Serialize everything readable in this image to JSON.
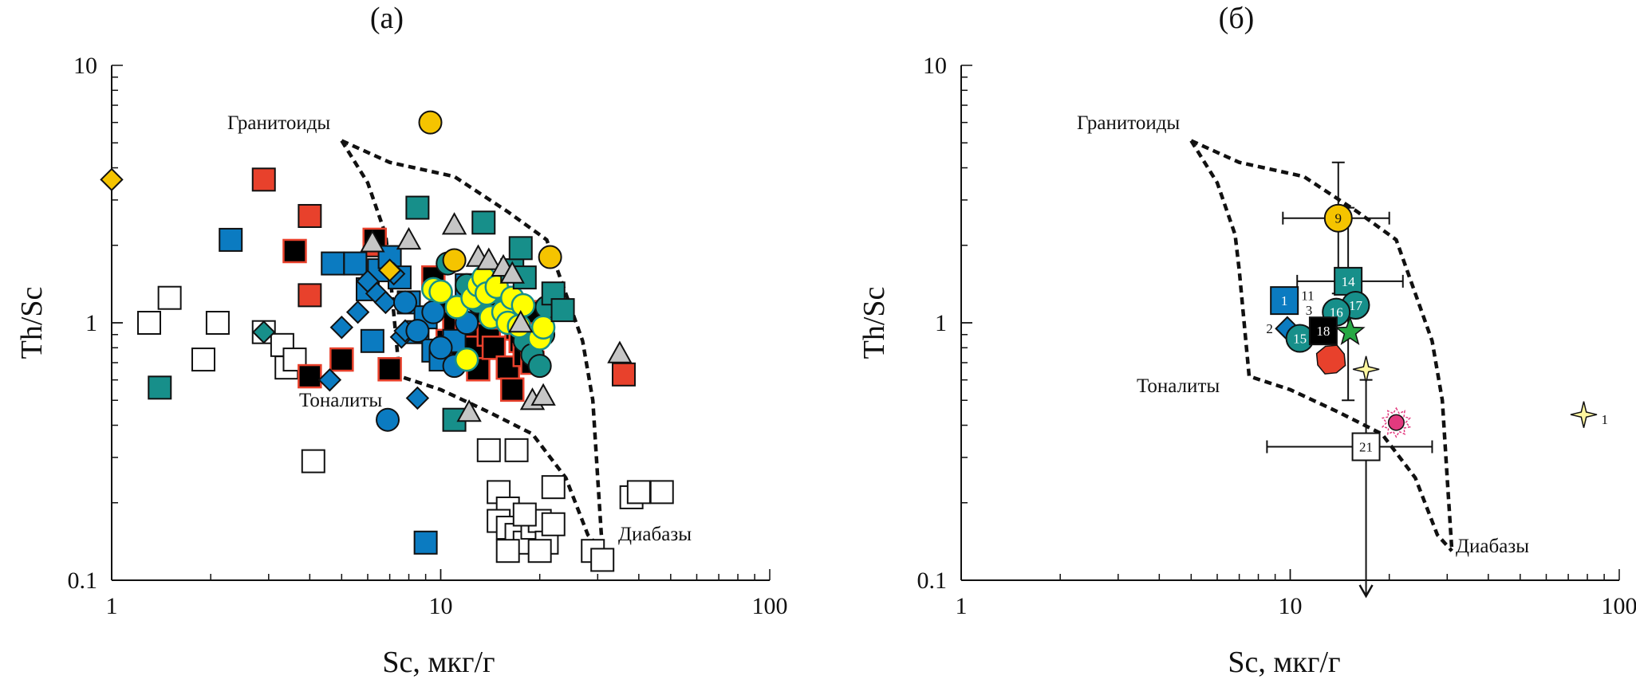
{
  "chart_data": [
    {
      "type": "scatter",
      "title": "(а)",
      "xlabel": "Sc, мкг/г",
      "ylabel": "Th/Sc",
      "x_scale": "log",
      "y_scale": "log",
      "xlim": [
        1,
        100
      ],
      "ylim": [
        0.1,
        10
      ],
      "x_ticks": [
        "1",
        "10",
        "100"
      ],
      "y_ticks": [
        "0.1",
        "1",
        "10"
      ],
      "grid": false,
      "fields": [
        {
          "label": "Гранитоиды",
          "points": [
            [
              5,
              5.1
            ],
            [
              7,
              4.2
            ],
            [
              11,
              3.7
            ],
            [
              16,
              2.7
            ],
            [
              21,
              2.1
            ],
            [
              24,
              1.3
            ],
            [
              27,
              0.85
            ],
            [
              29,
              0.5
            ],
            [
              30,
              0.25
            ],
            [
              31,
              0.13
            ]
          ]
        },
        {
          "label": "Тоналиты",
          "points": [
            [
              5,
              5.1
            ],
            [
              6,
              3.5
            ],
            [
              6.8,
              2.2
            ],
            [
              7,
              1.6
            ],
            [
              7.5,
              0.62
            ],
            [
              10,
              0.55
            ],
            [
              14,
              0.45
            ],
            [
              19,
              0.37
            ],
            [
              24,
              0.25
            ],
            [
              28,
              0.15
            ],
            [
              31,
              0.13
            ]
          ]
        },
        {
          "label": "Диабазы",
          "points": []
        }
      ],
      "label_positions": {
        "Гранитоиды": [
          1.0,
          1.0
        ],
        "Тоналиты": [
          0.5,
          0.5
        ],
        "Диабазы": [
          0.5,
          0.5
        ]
      },
      "series": [
        {
          "marker": "square",
          "fill": "#ffffff",
          "stroke": "#111111",
          "points": [
            [
              1.3,
              1.0
            ],
            [
              1.5,
              1.25
            ],
            [
              1.9,
              0.72
            ],
            [
              2.1,
              1.0
            ],
            [
              2.9,
              0.92
            ],
            [
              3.3,
              0.82
            ],
            [
              3.4,
              0.67
            ],
            [
              3.6,
              0.72
            ],
            [
              4.1,
              0.29
            ],
            [
              14,
              0.32
            ],
            [
              15,
              0.22
            ],
            [
              16,
              0.19
            ],
            [
              17,
              0.32
            ],
            [
              15,
              0.17
            ],
            [
              16,
              0.16
            ],
            [
              17,
              0.15
            ],
            [
              18,
              0.14
            ],
            [
              19,
              0.16
            ],
            [
              20,
              0.17
            ],
            [
              21,
              0.14
            ],
            [
              20,
              0.13
            ],
            [
              22,
              0.165
            ],
            [
              22,
              0.23
            ],
            [
              29,
              0.13
            ],
            [
              31,
              0.12
            ],
            [
              38,
              0.21
            ],
            [
              40,
              0.22
            ],
            [
              47,
              0.22
            ],
            [
              16,
              0.13
            ],
            [
              18,
              0.18
            ]
          ]
        },
        {
          "marker": "square",
          "fill": "#e8412c",
          "stroke": "#111111",
          "points": [
            [
              2.9,
              3.6
            ],
            [
              4.0,
              2.6
            ],
            [
              4.0,
              1.28
            ],
            [
              6.3,
              2.0
            ],
            [
              36,
              0.63
            ]
          ]
        },
        {
          "marker": "square",
          "fill": "#000000",
          "stroke": "#e8412c",
          "points": [
            [
              3.6,
              1.9
            ],
            [
              4.0,
              0.62
            ],
            [
              5.0,
              0.72
            ],
            [
              6.3,
              2.1
            ],
            [
              7.0,
              0.66
            ],
            [
              9.5,
              1.5
            ],
            [
              10,
              1.2
            ],
            [
              10.5,
              0.85
            ],
            [
              11,
              1.0
            ],
            [
              11.5,
              0.72
            ],
            [
              12,
              0.95
            ],
            [
              12.5,
              0.8
            ],
            [
              13,
              0.66
            ],
            [
              13.5,
              1.1
            ],
            [
              14,
              0.9
            ],
            [
              14.5,
              0.8
            ],
            [
              15,
              1.25
            ],
            [
              15.5,
              1.05
            ],
            [
              16,
              0.67
            ],
            [
              16.5,
              0.55
            ],
            [
              17,
              0.95
            ],
            [
              17.5,
              0.85
            ],
            [
              18,
              0.75
            ],
            [
              18.5,
              1.1
            ],
            [
              19,
              0.7
            ]
          ]
        },
        {
          "marker": "square",
          "fill": "#0b7bc1",
          "stroke": "#111111",
          "points": [
            [
              2.3,
              2.1
            ],
            [
              4.7,
              1.7
            ],
            [
              5.5,
              1.7
            ],
            [
              6.0,
              1.35
            ],
            [
              6.2,
              0.85
            ],
            [
              6.5,
              1.6
            ],
            [
              7.0,
              1.8
            ],
            [
              7.5,
              1.5
            ],
            [
              8.0,
              1.2
            ],
            [
              8.5,
              0.92
            ],
            [
              9.0,
              1.05
            ],
            [
              9.5,
              0.78
            ],
            [
              10,
              0.72
            ],
            [
              11,
              0.85
            ],
            [
              12,
              1.4
            ],
            [
              9,
              0.14
            ]
          ]
        },
        {
          "marker": "diamond",
          "fill": "#0b7bc1",
          "stroke": "#111111",
          "points": [
            [
              4.6,
              0.6
            ],
            [
              5.0,
              0.96
            ],
            [
              5.6,
              1.1
            ],
            [
              6.0,
              1.45
            ],
            [
              6.4,
              1.3
            ],
            [
              6.8,
              1.2
            ],
            [
              7.2,
              1.55
            ],
            [
              7.6,
              0.88
            ],
            [
              7.8,
              0.93
            ],
            [
              8.5,
              0.51
            ]
          ]
        },
        {
          "marker": "diamond",
          "fill": "#178f8a",
          "stroke": "#111111",
          "points": [
            [
              2.9,
              0.92
            ]
          ]
        },
        {
          "marker": "diamond",
          "fill": "#f5c400",
          "stroke": "#111111",
          "points": [
            [
              1.0,
              3.6
            ],
            [
              7.0,
              1.6
            ]
          ]
        },
        {
          "marker": "circle",
          "fill": "#0b7bc1",
          "stroke": "#111111",
          "points": [
            [
              6.9,
              0.42
            ],
            [
              7.8,
              1.2
            ],
            [
              8.5,
              0.93
            ],
            [
              9.5,
              1.1
            ],
            [
              10,
              0.8
            ],
            [
              11,
              0.68
            ],
            [
              12,
              1.0
            ]
          ]
        },
        {
          "marker": "circle",
          "fill": "#178f8a",
          "stroke": "#111111",
          "points": [
            [
              10.5,
              1.7
            ],
            [
              12,
              1.4
            ],
            [
              13,
              1.2
            ],
            [
              15,
              1.3
            ],
            [
              17,
              1.05
            ],
            [
              18,
              0.85
            ],
            [
              19,
              0.75
            ],
            [
              20,
              0.68
            ],
            [
              20.5,
              0.9
            ],
            [
              21,
              1.15
            ]
          ]
        },
        {
          "marker": "circle",
          "fill": "#f5c400",
          "stroke": "#111111",
          "points": [
            [
              9.3,
              6.0
            ],
            [
              11,
              1.75
            ],
            [
              21.5,
              1.8
            ]
          ]
        },
        {
          "marker": "circle",
          "fill": "#ffff00",
          "stroke": "#178f8a",
          "points": [
            [
              9.5,
              1.35
            ],
            [
              10,
              1.32
            ],
            [
              11.2,
              1.15
            ],
            [
              12,
              0.72
            ],
            [
              12.5,
              1.25
            ],
            [
              13,
              1.4
            ],
            [
              13.5,
              1.5
            ],
            [
              13.8,
              1.3
            ],
            [
              14.2,
              1.05
            ],
            [
              14.8,
              1.38
            ],
            [
              15.5,
              1.1
            ],
            [
              16,
              1.0
            ],
            [
              16.5,
              1.25
            ],
            [
              17.3,
              0.97
            ],
            [
              17.8,
              1.17
            ],
            [
              20,
              0.87
            ],
            [
              20.5,
              0.96
            ]
          ]
        },
        {
          "marker": "square",
          "fill": "#178f8a",
          "stroke": "#111111",
          "points": [
            [
              1.4,
              0.56
            ],
            [
              8.5,
              2.8
            ],
            [
              11,
              0.42
            ],
            [
              13.5,
              2.45
            ],
            [
              16.5,
              1.6
            ],
            [
              17.5,
              1.95
            ],
            [
              18,
              1.5
            ],
            [
              22,
              1.3
            ],
            [
              23.5,
              1.12
            ]
          ]
        },
        {
          "marker": "triangle",
          "fill": "#c6c6c6",
          "stroke": "#111111",
          "points": [
            [
              6.2,
              2.05
            ],
            [
              8.0,
              2.1
            ],
            [
              11.0,
              2.4
            ],
            [
              12.2,
              0.45
            ],
            [
              13.0,
              1.8
            ],
            [
              14.0,
              1.75
            ],
            [
              15.5,
              1.65
            ],
            [
              16.5,
              1.55
            ],
            [
              17.5,
              1.0
            ],
            [
              19.0,
              0.5
            ],
            [
              20.5,
              0.52
            ],
            [
              35.0,
              0.76
            ]
          ]
        }
      ]
    },
    {
      "type": "scatter",
      "title": "(б)",
      "xlabel": "Sc, мкг/г",
      "ylabel": "Th/Sc",
      "x_scale": "log",
      "y_scale": "log",
      "xlim": [
        1,
        100
      ],
      "ylim": [
        0.1,
        10
      ],
      "x_ticks": [
        "1",
        "10",
        "100"
      ],
      "y_ticks": [
        "0.1",
        "1",
        "10"
      ],
      "grid": false,
      "fields": [
        {
          "label": "Гранитоиды",
          "points": [
            [
              5,
              5.1
            ],
            [
              7,
              4.2
            ],
            [
              11,
              3.7
            ],
            [
              16,
              2.7
            ],
            [
              21,
              2.1
            ],
            [
              24,
              1.3
            ],
            [
              27,
              0.85
            ],
            [
              29,
              0.5
            ],
            [
              30,
              0.25
            ],
            [
              31,
              0.13
            ]
          ]
        },
        {
          "label": "Тоналиты",
          "points": [
            [
              5,
              5.1
            ],
            [
              6,
              3.5
            ],
            [
              6.8,
              2.2
            ],
            [
              7,
              1.6
            ],
            [
              7.5,
              0.62
            ],
            [
              10,
              0.55
            ],
            [
              14,
              0.45
            ],
            [
              19,
              0.37
            ],
            [
              24,
              0.25
            ],
            [
              28,
              0.15
            ],
            [
              31,
              0.13
            ]
          ]
        },
        {
          "label": "Диабазы",
          "points": []
        }
      ],
      "points": [
        {
          "label": "9",
          "marker": "circle",
          "fill": "#f5c400",
          "x": 14,
          "y": 2.55,
          "xerr": [
            9.5,
            20
          ],
          "yerr": [
            1.3,
            4.2
          ]
        },
        {
          "label": "14",
          "marker": "square",
          "fill": "#178f8a",
          "x": 15,
          "y": 1.45,
          "xerr": [
            10.5,
            22
          ],
          "yerr": [
            0.5,
            2.8
          ]
        },
        {
          "label": "1",
          "marker": "square",
          "fill": "#0b7bc1",
          "x": 9.6,
          "y": 1.22
        },
        {
          "label": "11",
          "marker": "none",
          "fill": "#111111",
          "x": 11.3,
          "y": 1.28
        },
        {
          "label": "3",
          "marker": "none",
          "fill": "#111111",
          "x": 11.4,
          "y": 1.12
        },
        {
          "label": "17",
          "marker": "circle",
          "fill": "#178f8a",
          "x": 15.8,
          "y": 1.17
        },
        {
          "label": "16",
          "marker": "circle",
          "fill": "#178f8a",
          "x": 13.8,
          "y": 1.1
        },
        {
          "label": "2",
          "marker": "diamond",
          "fill": "#0b7bc1",
          "x": 9.8,
          "y": 0.95
        },
        {
          "label": "15",
          "marker": "circle",
          "fill": "#178f8a",
          "x": 10.7,
          "y": 0.87
        },
        {
          "label": "18",
          "marker": "square",
          "fill": "#000000",
          "x": 12.6,
          "y": 0.93
        },
        {
          "label": "",
          "marker": "star",
          "fill": "#27a844",
          "x": 15.2,
          "y": 0.92
        },
        {
          "label": "",
          "marker": "octagon",
          "fill": "#e8412c",
          "x": 13.3,
          "y": 0.72
        },
        {
          "label": "",
          "marker": "sparkle",
          "fill": "#fff7a0",
          "x": 17,
          "y": 0.66
        },
        {
          "label": "",
          "marker": "starburst",
          "fill": "#e23a7e",
          "x": 21,
          "y": 0.41
        },
        {
          "label": "21",
          "marker": "square",
          "fill": "#ffffff",
          "x": 17,
          "y": 0.33,
          "xerr": [
            8.5,
            27
          ],
          "yerr": [
            0.1,
            0.6
          ]
        },
        {
          "label": "1",
          "marker": "sparkle",
          "fill": "#fff7a0",
          "x": 78,
          "y": 0.44
        }
      ]
    }
  ]
}
